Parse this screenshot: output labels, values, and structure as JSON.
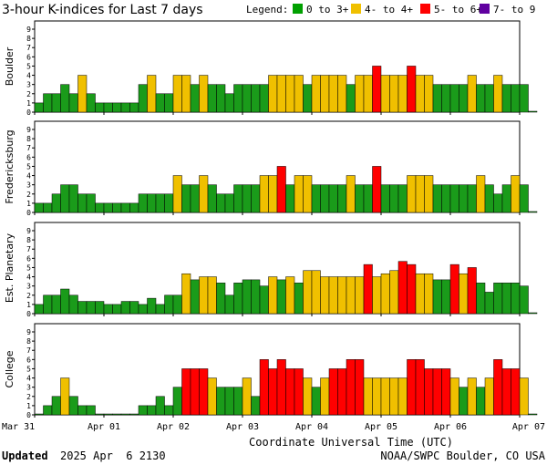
{
  "chart_data": {
    "type": "bar",
    "title": "3-hour K-indices for Last 7 days",
    "legend": {
      "label": "Legend:",
      "entries": [
        {
          "label": "0 to 3+",
          "color": "#00a000"
        },
        {
          "label": "4- to 4+",
          "color": "#f0c000"
        },
        {
          "label": "5- to 6+",
          "color": "#ff0000"
        },
        {
          "label": "7- to 9",
          "color": "#6000a0"
        }
      ]
    },
    "bar_colors": {
      "quiet": "#1a9b1a",
      "active": "#f0c000",
      "storm": "#ff0000",
      "severe": "#6000a0",
      "outline": "#000000"
    },
    "ylim": [
      0,
      9
    ],
    "yticks": [
      "0",
      "1",
      "2",
      "3",
      "4",
      "5",
      "6",
      "7",
      "8",
      "9"
    ],
    "xlabel": "Coordinate Universal Time (UTC)",
    "x_ticks": [
      "Mar 31",
      "Apr 01",
      "Apr 02",
      "Apr 03",
      "Apr 04",
      "Apr 05",
      "Apr 06",
      "Apr 07"
    ],
    "slots_per_day": 8,
    "days": 7,
    "panels": [
      {
        "name": "Boulder",
        "values": [
          1,
          2,
          2,
          3,
          2,
          4,
          2,
          1,
          1,
          1,
          1,
          1,
          3,
          4,
          2,
          2,
          4,
          4,
          3,
          4,
          3,
          3,
          2,
          3,
          3,
          3,
          3,
          4,
          4,
          4,
          4,
          3,
          4,
          4,
          4,
          4,
          3,
          4,
          4,
          5,
          4,
          4,
          4,
          5,
          4,
          4,
          3,
          3,
          3,
          3,
          4,
          3,
          3,
          4,
          3,
          3,
          3,
          0
        ]
      },
      {
        "name": "Fredericksburg",
        "values": [
          1,
          1,
          2,
          3,
          3,
          2,
          2,
          1,
          1,
          1,
          1,
          1,
          2,
          2,
          2,
          2,
          4,
          3,
          3,
          4,
          3,
          2,
          2,
          3,
          3,
          3,
          4,
          4,
          5,
          3,
          4,
          4,
          3,
          3,
          3,
          3,
          4,
          3,
          3,
          5,
          3,
          3,
          3,
          4,
          4,
          4,
          3,
          3,
          3,
          3,
          3,
          4,
          3,
          2,
          3,
          4,
          3,
          0
        ]
      },
      {
        "name": "Est. Planetary",
        "values": [
          1,
          2,
          2,
          2.67,
          2,
          1.33,
          1.33,
          1.33,
          1,
          1,
          1.33,
          1.33,
          1,
          1.67,
          1,
          2,
          2,
          4.33,
          3.67,
          4,
          4,
          3.33,
          2,
          3.33,
          3.67,
          3.67,
          3,
          4,
          3.67,
          4,
          3.33,
          4.67,
          4.67,
          4,
          4,
          4,
          4,
          4,
          5.33,
          4,
          4.33,
          4.67,
          5.67,
          5.33,
          4.33,
          4.33,
          3.67,
          3.67,
          5.33,
          4.33,
          5,
          3.33,
          2.33,
          3.33,
          3.33,
          3.33,
          3,
          0
        ]
      },
      {
        "name": "College",
        "values": [
          0,
          1,
          2,
          4,
          2,
          1,
          1,
          0,
          0,
          0,
          0,
          0,
          1,
          1,
          2,
          1,
          3,
          5,
          5,
          5,
          4,
          3,
          3,
          3,
          4,
          2,
          6,
          5,
          6,
          5,
          5,
          4,
          3,
          4,
          5,
          5,
          6,
          6,
          4,
          4,
          4,
          4,
          4,
          6,
          6,
          5,
          5,
          5,
          4,
          3,
          4,
          3,
          4,
          6,
          5,
          5,
          4,
          0
        ]
      }
    ]
  },
  "footer": {
    "updated_label": "Updated",
    "updated_value": "2025 Apr  6 2130",
    "source": "NOAA/SWPC Boulder, CO USA"
  }
}
